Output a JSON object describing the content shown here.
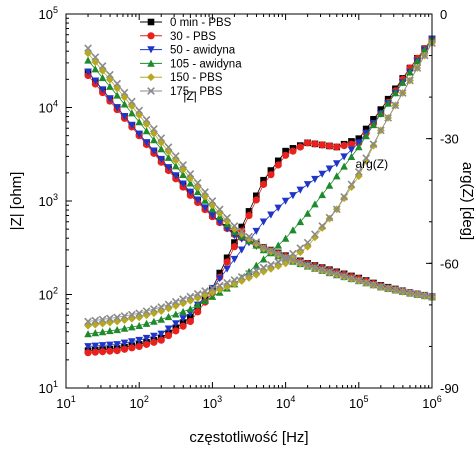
{
  "chart_data": {
    "type": "line",
    "xlabel": "częstotliwość [Hz]",
    "ylabel_left": "|Z| [ohm]",
    "ylabel_right": "arg(Z) [deg]",
    "x_scale": "log",
    "y_left_scale": "log",
    "xlim": [
      10,
      1000000
    ],
    "ylim_left": [
      10,
      100000
    ],
    "ylim_right": [
      -90,
      0
    ],
    "x_ticks": [
      "10^1",
      "10^2",
      "10^3",
      "10^4",
      "10^5",
      "10^6"
    ],
    "y_left_ticks": [
      "10^1",
      "10^2",
      "10^3",
      "10^4",
      "10^5"
    ],
    "y_right_ticks": [
      "0",
      "-30",
      "-60",
      "-90"
    ],
    "grid": false,
    "legend_position": "top-center",
    "annotations": [
      {
        "text": "|Z|",
        "x": 400,
        "y": 12000,
        "axis": "left"
      },
      {
        "text": "arg(Z)",
        "x": 90000,
        "y": -37,
        "axis": "right"
      }
    ],
    "series": [
      {
        "name": "0 min - PBS",
        "color": "#000000",
        "marker": "square",
        "freq": [
          20,
          50,
          100,
          200,
          500,
          1000,
          2000,
          5000,
          10000,
          20000,
          50000,
          100000,
          200000,
          500000,
          1000000
        ],
        "magnitude": [
          24000,
          10000,
          5200,
          2700,
          1200,
          700,
          450,
          320,
          260,
          215,
          175,
          150,
          125,
          105,
          95
        ],
        "phase": [
          -81,
          -80.5,
          -79.5,
          -78,
          -73,
          -66,
          -55,
          -40,
          -33,
          -31,
          -32,
          -30,
          -23,
          -13,
          -6
        ]
      },
      {
        "name": "30 - PBS",
        "color": "#e8211c",
        "marker": "circle",
        "freq": [
          20,
          50,
          100,
          200,
          500,
          1000,
          2000,
          5000,
          10000,
          20000,
          50000,
          100000,
          200000,
          500000,
          1000000
        ],
        "magnitude": [
          22000,
          9500,
          5000,
          2600,
          1150,
          680,
          440,
          315,
          255,
          212,
          172,
          148,
          123,
          104,
          94
        ],
        "phase": [
          -81.5,
          -81,
          -80,
          -78.5,
          -74,
          -67,
          -56,
          -41,
          -34,
          -31,
          -32,
          -31,
          -24,
          -13,
          -6
        ]
      },
      {
        "name": "50 - awidyna",
        "color": "#1f35c8",
        "marker": "triangle-down",
        "freq": [
          20,
          50,
          100,
          200,
          500,
          1000,
          2000,
          5000,
          10000,
          20000,
          50000,
          100000,
          200000,
          500000,
          1000000
        ],
        "magnitude": [
          24000,
          10000,
          5200,
          2800,
          1250,
          700,
          430,
          300,
          245,
          205,
          165,
          140,
          120,
          103,
          94
        ],
        "phase": [
          -80,
          -79.5,
          -78.5,
          -77,
          -72,
          -66,
          -59,
          -50,
          -45,
          -41,
          -36,
          -31,
          -24,
          -14,
          -6
        ]
      },
      {
        "name": "105 - awidyna",
        "color": "#1e8a2c",
        "marker": "triangle-up",
        "freq": [
          20,
          50,
          100,
          200,
          500,
          1000,
          2000,
          5000,
          10000,
          20000,
          50000,
          100000,
          200000,
          500000,
          1000000
        ],
        "magnitude": [
          32000,
          13500,
          7000,
          3600,
          1550,
          820,
          470,
          300,
          240,
          200,
          162,
          140,
          120,
          103,
          94
        ],
        "phase": [
          -77,
          -76,
          -75,
          -73.5,
          -71,
          -68,
          -65,
          -59,
          -54,
          -48,
          -39,
          -32,
          -24,
          -14,
          -6
        ]
      },
      {
        "name": "150 - PBS",
        "color": "#b7a821",
        "marker": "diamond",
        "freq": [
          20,
          50,
          100,
          200,
          500,
          1000,
          2000,
          5000,
          10000,
          20000,
          50000,
          100000,
          200000,
          500000,
          1000000
        ],
        "magnitude": [
          38000,
          16000,
          8300,
          4200,
          1750,
          900,
          500,
          310,
          245,
          202,
          163,
          140,
          120,
          103,
          94
        ],
        "phase": [
          -75,
          -74,
          -73,
          -71.5,
          -69,
          -67,
          -65,
          -62,
          -60,
          -56,
          -47,
          -39,
          -28,
          -16,
          -7
        ]
      },
      {
        "name": "175 - PBS",
        "color": "#8a8a8a",
        "marker": "x",
        "freq": [
          20,
          50,
          100,
          200,
          500,
          1000,
          2000,
          5000,
          10000,
          20000,
          50000,
          100000,
          200000,
          500000,
          1000000
        ],
        "magnitude": [
          43000,
          18000,
          9300,
          4700,
          1950,
          1000,
          540,
          320,
          250,
          205,
          165,
          141,
          121,
          104,
          95
        ],
        "phase": [
          -74,
          -73,
          -72,
          -70.5,
          -68,
          -66,
          -64,
          -61,
          -59,
          -55,
          -47,
          -38,
          -28,
          -16,
          -7
        ]
      }
    ]
  }
}
